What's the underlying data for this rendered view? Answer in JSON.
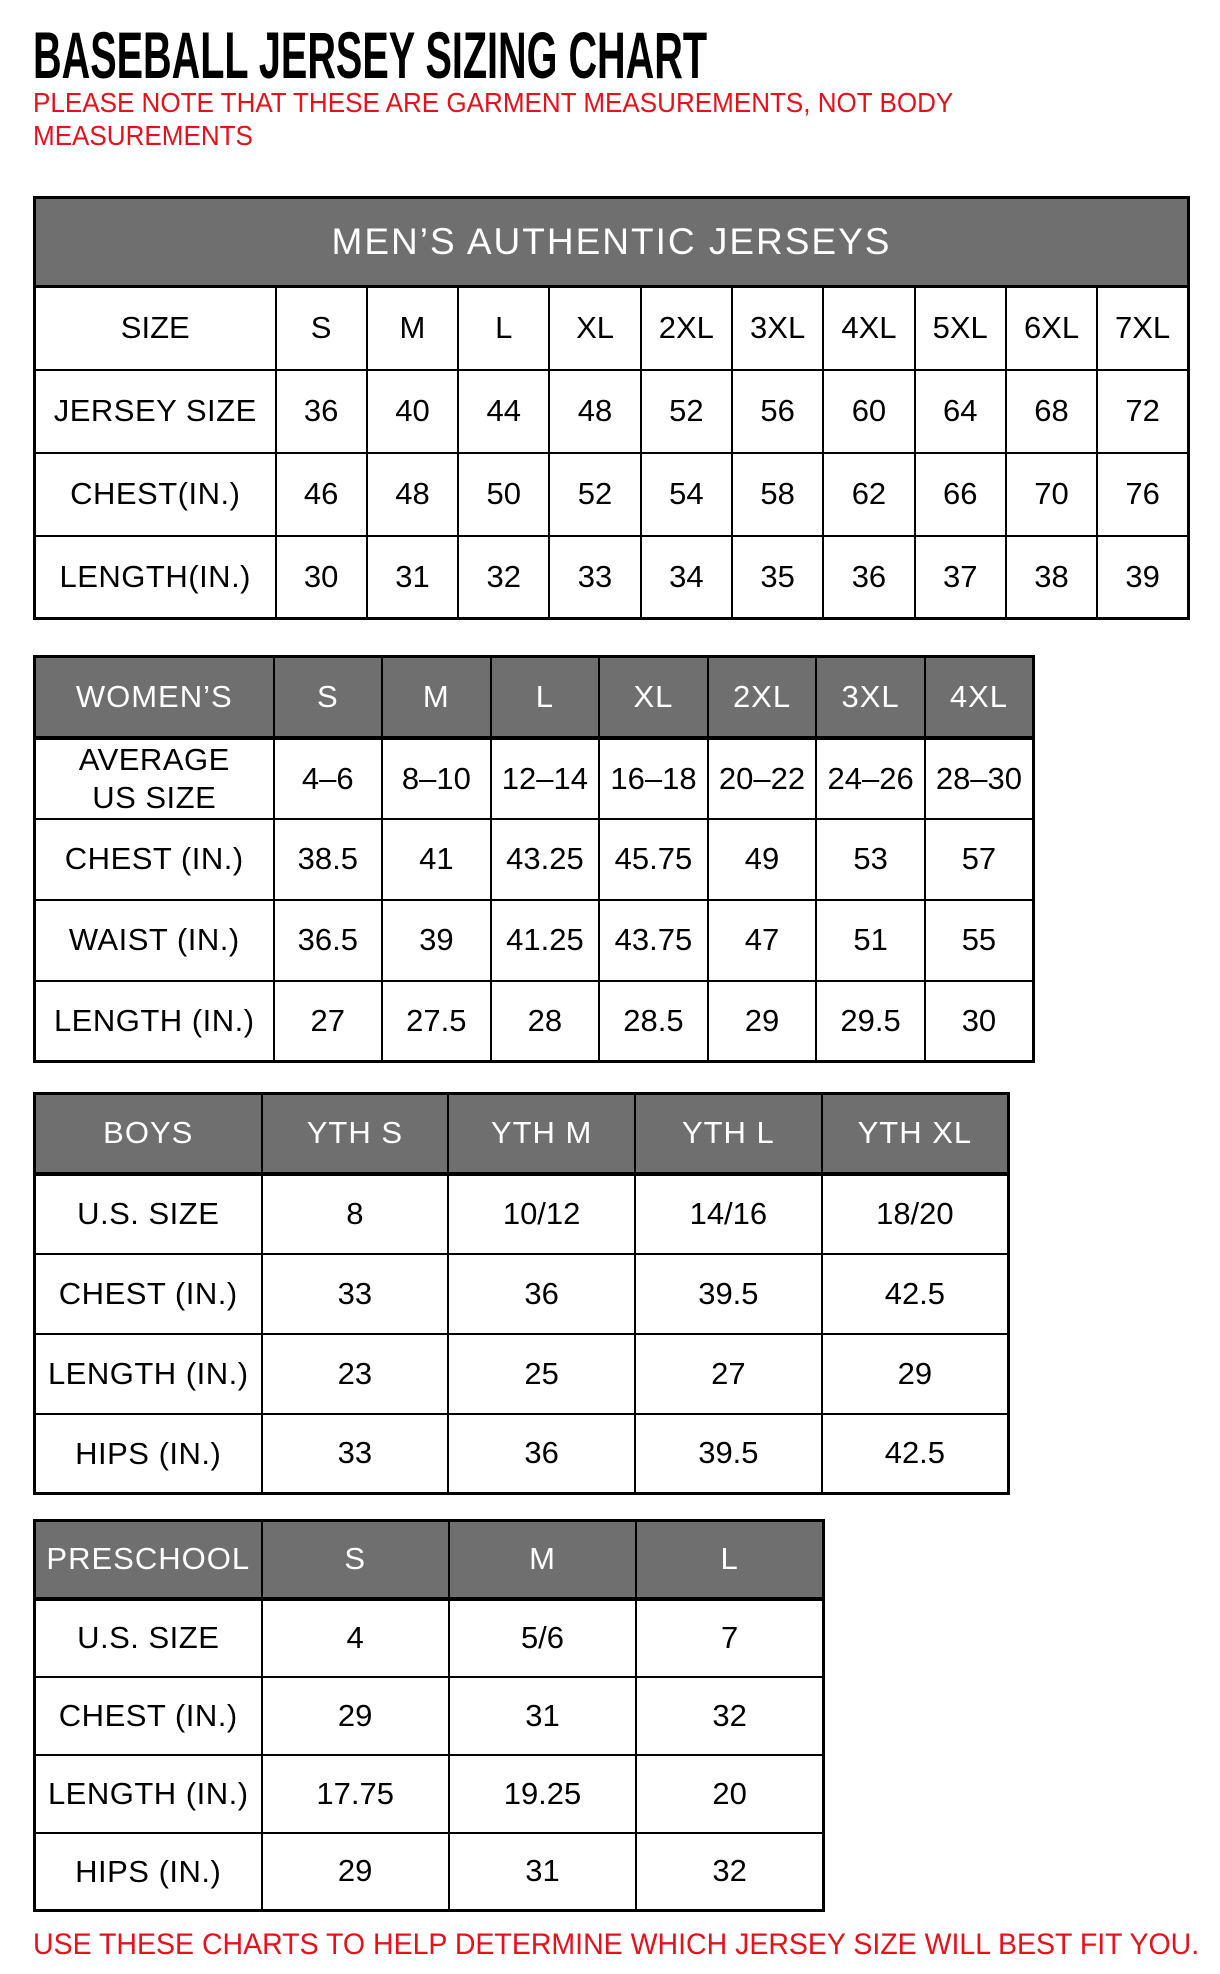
{
  "page": {
    "title": "BASEBALL JERSEY SIZING CHART",
    "note_lines": [
      "PLEASE NOTE THAT THESE ARE GARMENT MEASUREMENTS, NOT BODY",
      "MEASUREMENTS"
    ],
    "footer": "USE THESE CHARTS TO HELP DETERMINE WHICH JERSEY SIZE WILL BEST FIT YOU.",
    "colors": {
      "accent_red": "#e8111a",
      "header_gray": "#6f6f70",
      "header_text": "#ffffff",
      "border": "#000000"
    }
  },
  "tables": [
    {
      "id": "mens",
      "banner": "MEN’S AUTHENTIC JERSEYS",
      "header": [
        "SIZE",
        "S",
        "M",
        "L",
        "XL",
        "2XL",
        "3XL",
        "4XL",
        "5XL",
        "6XL",
        "7XL"
      ],
      "rows": [
        [
          "JERSEY SIZE",
          "36",
          "40",
          "44",
          "48",
          "52",
          "56",
          "60",
          "64",
          "68",
          "72"
        ],
        [
          "CHEST(IN.)",
          "46",
          "48",
          "50",
          "52",
          "54",
          "58",
          "62",
          "66",
          "70",
          "76"
        ],
        [
          "LENGTH(IN.)",
          "30",
          "31",
          "32",
          "33",
          "34",
          "35",
          "36",
          "37",
          "38",
          "39"
        ]
      ]
    },
    {
      "id": "womens",
      "header_gray": [
        "WOMEN’S",
        "S",
        "M",
        "L",
        "XL",
        "2XL",
        "3XL",
        "4XL"
      ],
      "rows": [
        [
          "AVERAGE\nUS SIZE",
          "4–6",
          "8–10",
          "12–14",
          "16–18",
          "20–22",
          "24–26",
          "28–30"
        ],
        [
          "CHEST (IN.)",
          "38.5",
          "41",
          "43.25",
          "45.75",
          "49",
          "53",
          "57"
        ],
        [
          "WAIST (IN.)",
          "36.5",
          "39",
          "41.25",
          "43.75",
          "47",
          "51",
          "55"
        ],
        [
          "LENGTH (IN.)",
          "27",
          "27.5",
          "28",
          "28.5",
          "29",
          "29.5",
          "30"
        ]
      ]
    },
    {
      "id": "boys",
      "header_gray": [
        "BOYS",
        "YTH S",
        "YTH M",
        "YTH L",
        "YTH XL"
      ],
      "rows": [
        [
          "U.S. SIZE",
          "8",
          "10/12",
          "14/16",
          "18/20"
        ],
        [
          "CHEST (IN.)",
          "33",
          "36",
          "39.5",
          "42.5"
        ],
        [
          "LENGTH (IN.)",
          "23",
          "25",
          "27",
          "29"
        ],
        [
          "HIPS (IN.)",
          "33",
          "36",
          "39.5",
          "42.5"
        ]
      ]
    },
    {
      "id": "preschool",
      "header_gray": [
        "PRESCHOOL",
        "S",
        "M",
        "L"
      ],
      "rows": [
        [
          "U.S. SIZE",
          "4",
          "5/6",
          "7"
        ],
        [
          "CHEST (IN.)",
          "29",
          "31",
          "32"
        ],
        [
          "LENGTH (IN.)",
          "17.75",
          "19.25",
          "20"
        ],
        [
          "HIPS (IN.)",
          "29",
          "31",
          "32"
        ]
      ]
    }
  ]
}
